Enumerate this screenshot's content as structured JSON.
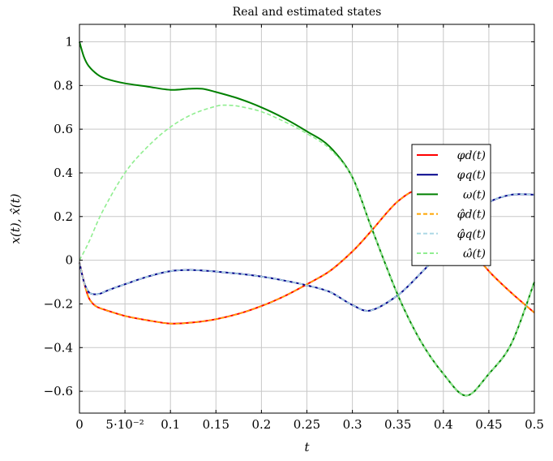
{
  "chart_data": {
    "type": "line",
    "title": "Real and estimated states",
    "xlabel": "t",
    "ylabel": "x(t), x̂(t)",
    "xlim": [
      0,
      0.5
    ],
    "ylim": [
      -0.7,
      1.08
    ],
    "grid": true,
    "legend_position": "right",
    "x_ticks": [
      {
        "value": 0,
        "label": "0"
      },
      {
        "value": 0.05,
        "label": "5·10⁻²"
      },
      {
        "value": 0.1,
        "label": "0.1"
      },
      {
        "value": 0.15,
        "label": "0.15"
      },
      {
        "value": 0.2,
        "label": "0.2"
      },
      {
        "value": 0.25,
        "label": "0.25"
      },
      {
        "value": 0.3,
        "label": "0.3"
      },
      {
        "value": 0.35,
        "label": "0.35"
      },
      {
        "value": 0.4,
        "label": "0.4"
      },
      {
        "value": 0.45,
        "label": "0.45"
      },
      {
        "value": 0.5,
        "label": "0.5"
      }
    ],
    "y_ticks": [
      {
        "value": 1,
        "label": "1"
      },
      {
        "value": 0.8,
        "label": "0.8"
      },
      {
        "value": 0.6,
        "label": "0.6"
      },
      {
        "value": 0.4,
        "label": "0.4"
      },
      {
        "value": 0.2,
        "label": "0.2"
      },
      {
        "value": 0,
        "label": "0"
      },
      {
        "value": -0.2,
        "label": "−0.2"
      },
      {
        "value": -0.4,
        "label": "−0.4"
      },
      {
        "value": -0.6,
        "label": "−0.6"
      }
    ],
    "series": [
      {
        "name": "φd(t)",
        "color": "#ff0000",
        "dashed": false,
        "x": [
          0,
          0.005,
          0.01,
          0.015,
          0.02,
          0.03,
          0.05,
          0.075,
          0.1,
          0.125,
          0.15,
          0.175,
          0.2,
          0.225,
          0.25,
          0.275,
          0.3,
          0.32,
          0.35,
          0.375,
          0.4,
          0.425,
          0.45,
          0.475,
          0.5
        ],
        "y": [
          -0.01,
          -0.1,
          -0.17,
          -0.2,
          -0.215,
          -0.23,
          -0.255,
          -0.275,
          -0.29,
          -0.285,
          -0.27,
          -0.245,
          -0.21,
          -0.165,
          -0.11,
          -0.05,
          0.04,
          0.13,
          0.27,
          0.32,
          0.24,
          0.08,
          -0.05,
          -0.15,
          -0.24
        ]
      },
      {
        "name": "φq(t)",
        "color": "#00008b",
        "dashed": false,
        "x": [
          0,
          0.005,
          0.01,
          0.015,
          0.02,
          0.025,
          0.03,
          0.05,
          0.075,
          0.1,
          0.125,
          0.15,
          0.175,
          0.2,
          0.225,
          0.25,
          0.275,
          0.3,
          0.32,
          0.35,
          0.375,
          0.4,
          0.425,
          0.45,
          0.475,
          0.5
        ],
        "y": [
          -0.01,
          -0.1,
          -0.145,
          -0.155,
          -0.155,
          -0.15,
          -0.14,
          -0.11,
          -0.075,
          -0.05,
          -0.045,
          -0.052,
          -0.062,
          -0.075,
          -0.093,
          -0.115,
          -0.145,
          -0.205,
          -0.23,
          -0.16,
          -0.06,
          0.05,
          0.18,
          0.265,
          0.3,
          0.3
        ]
      },
      {
        "name": "ω(t)",
        "color": "#008000",
        "dashed": false,
        "x": [
          0,
          0.005,
          0.01,
          0.02,
          0.03,
          0.05,
          0.075,
          0.1,
          0.12,
          0.135,
          0.15,
          0.175,
          0.2,
          0.225,
          0.25,
          0.275,
          0.3,
          0.32,
          0.35,
          0.375,
          0.4,
          0.425,
          0.45,
          0.475,
          0.5
        ],
        "y": [
          1.0,
          0.93,
          0.89,
          0.85,
          0.83,
          0.81,
          0.795,
          0.78,
          0.785,
          0.785,
          0.77,
          0.74,
          0.7,
          0.65,
          0.59,
          0.52,
          0.38,
          0.16,
          -0.16,
          -0.37,
          -0.52,
          -0.62,
          -0.52,
          -0.38,
          -0.1
        ]
      },
      {
        "name": "φ̂d(t)",
        "color": "#ffa500",
        "dashed": true,
        "x": [
          0,
          0.005,
          0.01,
          0.015,
          0.02,
          0.03,
          0.05,
          0.075,
          0.1,
          0.125,
          0.15,
          0.175,
          0.2,
          0.225,
          0.25,
          0.275,
          0.3,
          0.32,
          0.35,
          0.375,
          0.4,
          0.425,
          0.45,
          0.475,
          0.5
        ],
        "y": [
          -0.01,
          -0.1,
          -0.17,
          -0.2,
          -0.215,
          -0.23,
          -0.255,
          -0.275,
          -0.29,
          -0.285,
          -0.27,
          -0.245,
          -0.21,
          -0.165,
          -0.11,
          -0.05,
          0.04,
          0.13,
          0.27,
          0.32,
          0.24,
          0.08,
          -0.05,
          -0.15,
          -0.24
        ]
      },
      {
        "name": "φ̂q(t)",
        "color": "#add8e6",
        "dashed": true,
        "x": [
          0,
          0.005,
          0.01,
          0.015,
          0.02,
          0.025,
          0.03,
          0.05,
          0.075,
          0.1,
          0.125,
          0.15,
          0.175,
          0.2,
          0.225,
          0.25,
          0.275,
          0.3,
          0.32,
          0.35,
          0.375,
          0.4,
          0.425,
          0.45,
          0.475,
          0.5
        ],
        "y": [
          -0.01,
          -0.1,
          -0.145,
          -0.155,
          -0.155,
          -0.15,
          -0.14,
          -0.11,
          -0.075,
          -0.05,
          -0.045,
          -0.052,
          -0.062,
          -0.075,
          -0.093,
          -0.115,
          -0.145,
          -0.205,
          -0.23,
          -0.16,
          -0.06,
          0.05,
          0.18,
          0.265,
          0.3,
          0.3
        ]
      },
      {
        "name": "ω̂(t)",
        "color": "#90ee90",
        "dashed": true,
        "x": [
          0,
          0.01,
          0.025,
          0.05,
          0.075,
          0.1,
          0.125,
          0.15,
          0.16,
          0.175,
          0.2,
          0.225,
          0.25,
          0.275,
          0.3,
          0.32,
          0.35,
          0.375,
          0.4,
          0.425,
          0.45,
          0.475,
          0.5
        ],
        "y": [
          0.0,
          0.08,
          0.22,
          0.4,
          0.52,
          0.61,
          0.67,
          0.705,
          0.71,
          0.705,
          0.68,
          0.635,
          0.58,
          0.51,
          0.38,
          0.16,
          -0.16,
          -0.37,
          -0.52,
          -0.62,
          -0.52,
          -0.38,
          -0.1
        ]
      }
    ]
  }
}
